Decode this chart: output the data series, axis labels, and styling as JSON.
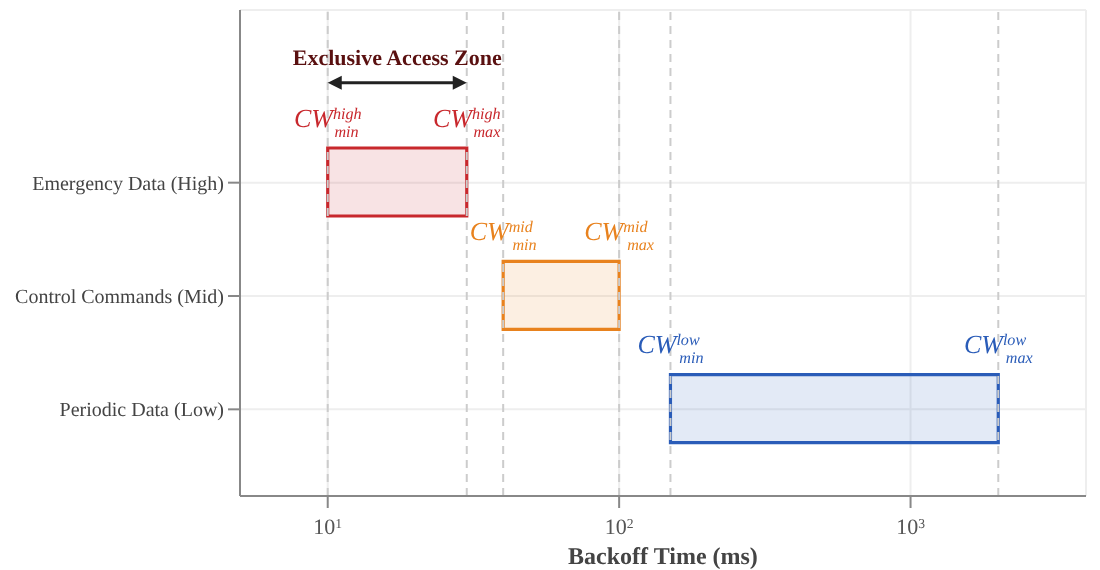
{
  "chart_data": {
    "type": "bar",
    "orientation": "horizontal",
    "log": "x",
    "grid": true,
    "categories": [
      "Emergency Data (High)",
      "Control Commands (Mid)",
      "Periodic Data (Low)"
    ],
    "base": [
      10,
      40,
      150
    ],
    "values": [
      20,
      60,
      1850
    ],
    "colors": [
      "#c8282d",
      "#e8821e",
      "#2a5cb8"
    ],
    "xlim": [
      5,
      4000
    ],
    "xticks": [
      {
        "value": 10,
        "label": "10$^{1}$"
      },
      {
        "value": 100,
        "label": "10$^{2}$"
      },
      {
        "value": 1000,
        "label": "10$^{3}$"
      }
    ],
    "xlabel": "Backoff Time (ms)",
    "ref_lines": [
      {
        "axis": "x",
        "value": 10,
        "line_style": "dashed",
        "color": "#cccccc"
      },
      {
        "axis": "x",
        "value": 30,
        "line_style": "dashed",
        "color": "#cccccc"
      },
      {
        "axis": "x",
        "value": 40,
        "line_style": "dashed",
        "color": "#cccccc"
      },
      {
        "axis": "x",
        "value": 100,
        "line_style": "dashed",
        "color": "#cccccc"
      },
      {
        "axis": "x",
        "value": 150,
        "line_style": "dashed",
        "color": "#cccccc"
      },
      {
        "axis": "x",
        "value": 2000,
        "line_style": "dashed",
        "color": "#cccccc"
      }
    ],
    "annotations": [
      "Exclusive Access Zone",
      {
        "text": "CW$^{high}$$_{min}$",
        "x": 10,
        "y": "Emergency Data (High)"
      },
      {
        "text": "CW$^{high}$$_{max}$",
        "x": 30,
        "y": "Emergency Data (High)"
      },
      {
        "text": "CW$^{mid}$$_{min}$",
        "x": 40,
        "y": "Control Commands (Mid)"
      },
      {
        "text": "CW$^{mid}$$_{max}$",
        "x": 100,
        "y": "Control Commands (Mid)"
      },
      {
        "text": "CW$^{low}$$_{min}$",
        "x": 150,
        "y": "Periodic Data (Low)"
      },
      {
        "text": "CW$^{low}$$_{max}$",
        "x": 2000,
        "y": "Periodic Data (Low)"
      }
    ]
  }
}
